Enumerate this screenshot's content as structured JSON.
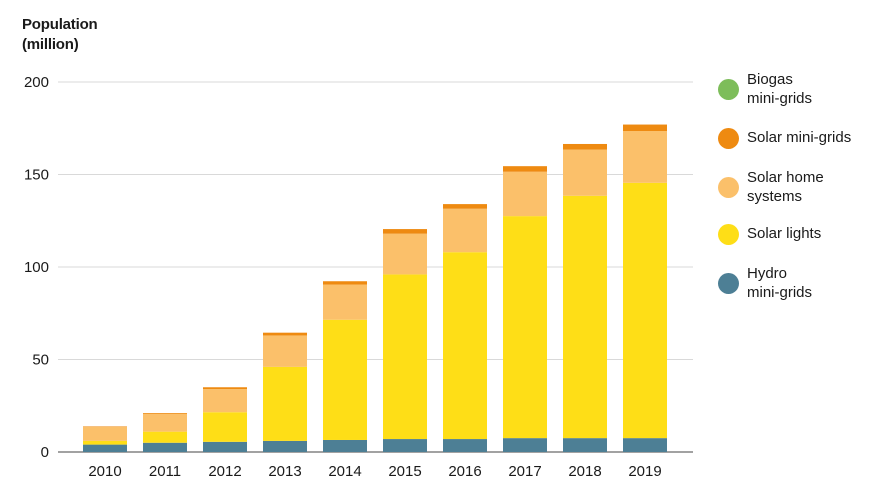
{
  "y_axis_title": {
    "line1": "Population",
    "line2": "(million)"
  },
  "legend": [
    {
      "key": "biogas",
      "line1": "Biogas",
      "line2": "mini-grids",
      "color": "#7dbd5a"
    },
    {
      "key": "solar_mini",
      "line1": "Solar mini-grids",
      "line2": "",
      "color": "#ee8a11"
    },
    {
      "key": "solar_home",
      "line1": "Solar home",
      "line2": "systems",
      "color": "#fbc06a"
    },
    {
      "key": "solar_lights",
      "line1": "Solar lights",
      "line2": "",
      "color": "#fede17"
    },
    {
      "key": "hydro",
      "line1": "Hydro",
      "line2": "mini-grids",
      "color": "#4d7f95"
    }
  ],
  "chart_data": {
    "type": "bar",
    "stacked": true,
    "categories": [
      "2010",
      "2011",
      "2012",
      "2013",
      "2014",
      "2015",
      "2016",
      "2017",
      "2018",
      "2019"
    ],
    "y_ticks": [
      "0",
      "50",
      "100",
      "150",
      "200"
    ],
    "ylim": [
      0,
      200
    ],
    "grid": true,
    "legend_position": "right",
    "series": [
      {
        "name": "Hydro mini-grids",
        "color": "#4d7f95",
        "values": [
          4,
          5,
          5.5,
          6,
          6.5,
          7,
          7,
          7.5,
          7.5,
          7.5
        ]
      },
      {
        "name": "Solar lights",
        "color": "#fede17",
        "values": [
          2,
          6,
          16,
          40,
          65,
          89,
          101,
          120,
          131,
          138
        ]
      },
      {
        "name": "Solar home systems",
        "color": "#fbc06a",
        "values": [
          7.5,
          9.5,
          12.5,
          17,
          19,
          22,
          23.5,
          24,
          25,
          28
        ]
      },
      {
        "name": "Solar mini-grids",
        "color": "#ee8a11",
        "values": [
          0.3,
          0.5,
          1,
          1.5,
          1.8,
          2.5,
          2.5,
          3,
          3,
          3.5
        ]
      },
      {
        "name": "Biogas mini-grids",
        "color": "#7dbd5a",
        "values": [
          0,
          0,
          0,
          0,
          0,
          0,
          0,
          0,
          0,
          0
        ]
      }
    ]
  }
}
